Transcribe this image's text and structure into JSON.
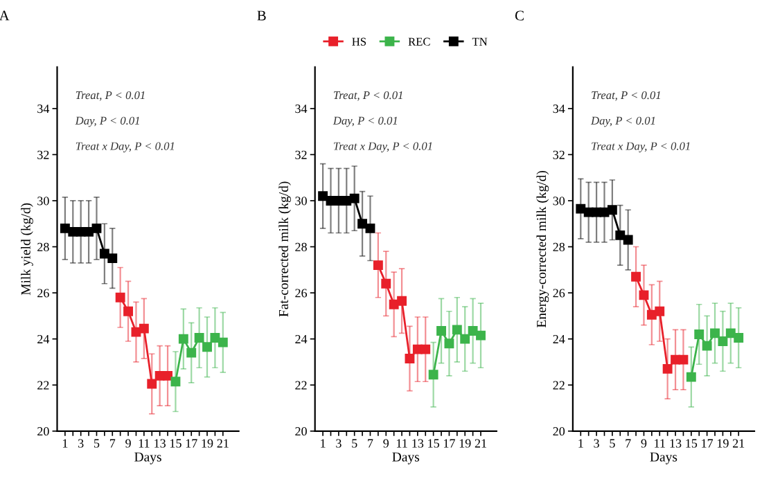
{
  "chart_data": [
    {
      "type": "line",
      "title": "A",
      "xlabel": "Days",
      "ylabel": "Milk yield (kg/d)",
      "marker": "square",
      "legend": false,
      "grid": false,
      "xlim": [
        0,
        23
      ],
      "ylim": [
        20,
        35.8
      ],
      "yticks": [
        20,
        22,
        24,
        26,
        28,
        30,
        32,
        34
      ],
      "xticks": [
        1,
        {
          "value": 2,
          "label": null
        },
        3,
        {
          "value": 4,
          "label": null
        },
        5,
        {
          "value": 6,
          "label": null
        },
        7,
        {
          "value": 8,
          "label": null
        },
        9,
        {
          "value": 10,
          "label": null
        },
        11,
        {
          "value": 12,
          "label": null
        },
        13,
        {
          "value": 14,
          "label": null
        },
        15,
        {
          "value": 16,
          "label": null
        },
        17,
        {
          "value": 18,
          "label": null
        },
        19,
        {
          "value": 20,
          "label": null
        },
        21
      ],
      "annotations": [
        "Treat, P < 0.01",
        "Day, P < 0.01",
        "Treat x Day, P < 0.01"
      ],
      "series": [
        {
          "color": "#000000",
          "x": [
            1,
            2,
            3,
            4,
            5,
            6,
            7
          ],
          "values": [
            28.8,
            28.65,
            28.65,
            28.65,
            28.8,
            27.7,
            27.5
          ],
          "errors": [
            1.35,
            1.35,
            1.35,
            1.35,
            1.35,
            1.3,
            1.3
          ]
        },
        {
          "color": "#e8202a",
          "x": [
            8,
            9,
            10,
            11,
            12,
            13,
            14
          ],
          "values": [
            25.8,
            25.2,
            24.3,
            24.45,
            22.05,
            22.4,
            22.4
          ],
          "errors": [
            1.3,
            1.3,
            1.3,
            1.3,
            1.3,
            1.3,
            1.3
          ]
        },
        {
          "color": "#3cb44b",
          "x": [
            15,
            16,
            17,
            18,
            19,
            20,
            21
          ],
          "values": [
            22.15,
            24.0,
            23.4,
            24.05,
            23.65,
            24.05,
            23.85
          ],
          "errors": [
            1.3,
            1.3,
            1.3,
            1.3,
            1.3,
            1.3,
            1.3
          ]
        }
      ]
    },
    {
      "type": "line",
      "title": "B",
      "xlabel": "Days",
      "ylabel": "Fat-corrected milk (kg/d)",
      "marker": "square",
      "legend": "top",
      "grid": false,
      "xlim": [
        0,
        23
      ],
      "ylim": [
        20,
        35.8
      ],
      "yticks": [
        20,
        22,
        24,
        26,
        28,
        30,
        32,
        34
      ],
      "xticks": [
        1,
        {
          "value": 2,
          "label": null
        },
        3,
        {
          "value": 4,
          "label": null
        },
        5,
        {
          "value": 6,
          "label": null
        },
        7,
        {
          "value": 8,
          "label": null
        },
        9,
        {
          "value": 10,
          "label": null
        },
        11,
        {
          "value": 12,
          "label": null
        },
        13,
        {
          "value": 14,
          "label": null
        },
        15,
        {
          "value": 16,
          "label": null
        },
        17,
        {
          "value": 18,
          "label": null
        },
        19,
        {
          "value": 20,
          "label": null
        },
        21
      ],
      "annotations": [
        "Treat, P < 0.01",
        "Day, P < 0.01",
        "Treat x Day, P < 0.01"
      ],
      "series": [
        {
          "name": "HS",
          "color": "#e8202a",
          "x": [
            8,
            9,
            10,
            11,
            12,
            13,
            14
          ],
          "values": [
            27.2,
            26.4,
            25.5,
            25.65,
            23.15,
            23.55,
            23.55
          ],
          "errors": [
            1.4,
            1.4,
            1.4,
            1.4,
            1.4,
            1.4,
            1.4
          ]
        },
        {
          "name": "REC",
          "color": "#3cb44b",
          "x": [
            15,
            16,
            17,
            18,
            19,
            20,
            21
          ],
          "values": [
            22.45,
            24.35,
            23.8,
            24.4,
            24.0,
            24.35,
            24.15
          ],
          "errors": [
            1.4,
            1.4,
            1.4,
            1.4,
            1.4,
            1.4,
            1.4
          ]
        },
        {
          "name": "TN",
          "color": "#000000",
          "x": [
            1,
            2,
            3,
            4,
            5,
            6,
            7
          ],
          "values": [
            30.2,
            30.0,
            30.0,
            30.0,
            30.1,
            29.0,
            28.8
          ],
          "errors": [
            1.4,
            1.4,
            1.4,
            1.4,
            1.4,
            1.4,
            1.4
          ]
        }
      ]
    },
    {
      "type": "line",
      "title": "C",
      "xlabel": "Days",
      "ylabel": "Energy-corrected milk (kg/d)",
      "marker": "square",
      "legend": false,
      "grid": false,
      "xlim": [
        0,
        23
      ],
      "ylim": [
        20,
        35.8
      ],
      "yticks": [
        20,
        22,
        24,
        26,
        28,
        30,
        32,
        34
      ],
      "xticks": [
        1,
        {
          "value": 2,
          "label": null
        },
        3,
        {
          "value": 4,
          "label": null
        },
        5,
        {
          "value": 6,
          "label": null
        },
        7,
        {
          "value": 8,
          "label": null
        },
        9,
        {
          "value": 10,
          "label": null
        },
        11,
        {
          "value": 12,
          "label": null
        },
        13,
        {
          "value": 14,
          "label": null
        },
        15,
        {
          "value": 16,
          "label": null
        },
        17,
        {
          "value": 18,
          "label": null
        },
        19,
        {
          "value": 20,
          "label": null
        },
        21
      ],
      "annotations": [
        "Treat, P < 0.01",
        "Day, P < 0.01",
        "Treat x Day, P < 0.01"
      ],
      "series": [
        {
          "color": "#000000",
          "x": [
            1,
            2,
            3,
            4,
            5,
            6,
            7
          ],
          "values": [
            29.65,
            29.5,
            29.5,
            29.5,
            29.6,
            28.5,
            28.3
          ],
          "errors": [
            1.3,
            1.3,
            1.3,
            1.3,
            1.3,
            1.3,
            1.3
          ]
        },
        {
          "color": "#e8202a",
          "x": [
            8,
            9,
            10,
            11,
            12,
            13,
            14
          ],
          "values": [
            26.7,
            25.9,
            25.05,
            25.2,
            22.7,
            23.1,
            23.1
          ],
          "errors": [
            1.3,
            1.3,
            1.3,
            1.3,
            1.3,
            1.3,
            1.3
          ]
        },
        {
          "color": "#3cb44b",
          "x": [
            15,
            16,
            17,
            18,
            19,
            20,
            21
          ],
          "values": [
            22.35,
            24.2,
            23.7,
            24.25,
            23.9,
            24.25,
            24.05
          ],
          "errors": [
            1.3,
            1.3,
            1.3,
            1.3,
            1.3,
            1.3,
            1.3
          ]
        }
      ]
    }
  ]
}
